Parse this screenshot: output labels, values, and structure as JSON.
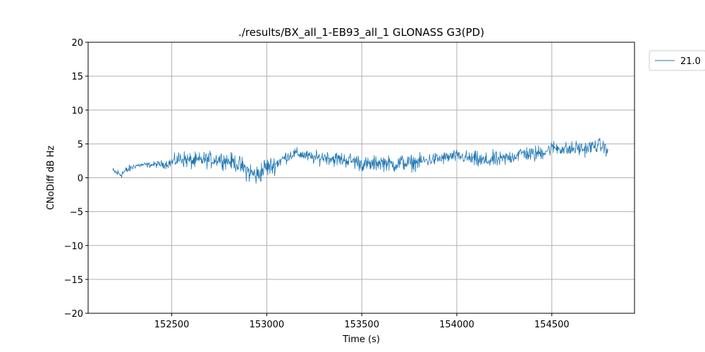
{
  "chart_data": {
    "type": "line",
    "title": "./results/BX_all_1-EB93_all_1 GLONASS G3(PD)",
    "xlabel": "Time (s)",
    "ylabel": "CNoDiff dB Hz",
    "xlim": [
      152060,
      154935
    ],
    "ylim": [
      -20,
      20
    ],
    "xticks": [
      152500,
      153000,
      153500,
      154000,
      154500
    ],
    "yticks": [
      -20,
      -15,
      -10,
      -5,
      0,
      5,
      10,
      15,
      20
    ],
    "xtick_labels": [
      "152500",
      "153000",
      "153500",
      "154000",
      "154500"
    ],
    "ytick_labels": [
      "−20",
      "−15",
      "−10",
      "−5",
      "0",
      "5",
      "10",
      "15",
      "20"
    ],
    "grid": true,
    "legend_position": "outside-top-right",
    "series": [
      {
        "name": "21.0",
        "color": "#1f77b4",
        "x": [
          152190,
          152230,
          152270,
          152310,
          152350,
          152390,
          152430,
          152470,
          152510,
          152550,
          152590,
          152630,
          152670,
          152710,
          152750,
          152790,
          152830,
          152870,
          152910,
          152950,
          152990,
          153030,
          153070,
          153110,
          153150,
          153190,
          153230,
          153270,
          153310,
          153350,
          153390,
          153430,
          153470,
          153510,
          153550,
          153590,
          153630,
          153670,
          153710,
          153750,
          153790,
          153830,
          153870,
          153910,
          153950,
          153990,
          154030,
          154070,
          154110,
          154150,
          154190,
          154230,
          154270,
          154310,
          154350,
          154390,
          154430,
          154470,
          154510,
          154550,
          154590,
          154630,
          154670,
          154710,
          154750,
          154795
        ],
        "y": [
          1.0,
          0.5,
          1.2,
          1.8,
          1.9,
          1.9,
          2.0,
          2.0,
          2.4,
          2.9,
          2.5,
          2.4,
          2.7,
          2.6,
          2.8,
          2.5,
          2.3,
          1.6,
          0.8,
          0.3,
          1.5,
          1.7,
          2.5,
          3.2,
          3.6,
          3.4,
          3.0,
          2.9,
          3.1,
          2.8,
          2.7,
          2.6,
          2.4,
          2.0,
          1.9,
          2.3,
          2.2,
          1.9,
          2.3,
          2.1,
          2.3,
          2.5,
          2.7,
          2.8,
          3.0,
          3.2,
          3.1,
          2.8,
          2.6,
          2.4,
          2.7,
          2.6,
          3.0,
          3.3,
          3.7,
          3.4,
          3.6,
          4.0,
          4.5,
          4.3,
          4.1,
          4.4,
          4.2,
          4.6,
          4.8,
          4.2
        ],
        "noise": [
          0.25,
          0.35,
          0.3,
          0.2,
          0.2,
          0.2,
          0.25,
          0.3,
          0.45,
          0.6,
          0.6,
          0.6,
          0.55,
          0.6,
          0.55,
          0.6,
          0.6,
          0.7,
          0.8,
          0.8,
          0.75,
          0.7,
          0.5,
          0.45,
          0.4,
          0.4,
          0.45,
          0.5,
          0.5,
          0.55,
          0.55,
          0.55,
          0.6,
          0.55,
          0.55,
          0.6,
          0.55,
          0.55,
          0.6,
          0.6,
          0.55,
          0.5,
          0.5,
          0.5,
          0.45,
          0.45,
          0.45,
          0.55,
          0.6,
          0.6,
          0.6,
          0.55,
          0.55,
          0.55,
          0.5,
          0.6,
          0.6,
          0.5,
          0.5,
          0.5,
          0.55,
          0.55,
          0.5,
          0.5,
          0.5,
          0.5
        ]
      }
    ]
  }
}
